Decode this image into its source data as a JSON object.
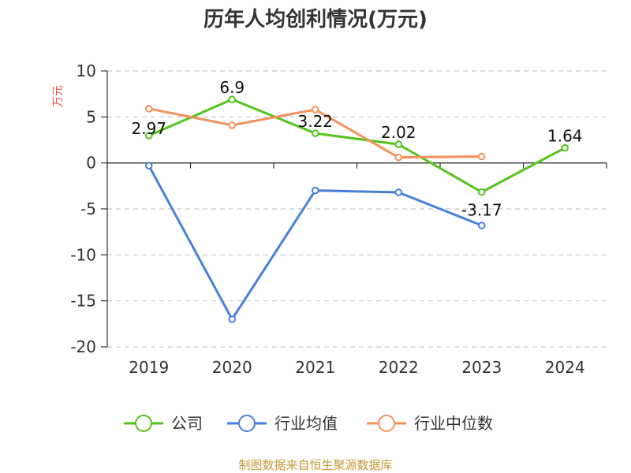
{
  "chart_data": {
    "type": "line",
    "title": "历年人均创利情况(万元)",
    "ylabel": "万元",
    "xlabel": "",
    "categories": [
      "2019",
      "2020",
      "2021",
      "2022",
      "2023",
      "2024"
    ],
    "ylim": [
      -20,
      10
    ],
    "yticks": [
      10,
      5,
      0,
      -5,
      -10,
      -15,
      -20
    ],
    "grid": true,
    "series": [
      {
        "name": "公司",
        "color": "#52c41a",
        "values": [
          2.97,
          6.9,
          3.22,
          2.02,
          -3.17,
          1.64
        ],
        "show_labels": true,
        "labels": [
          "2.97",
          "6.9",
          "3.22",
          "2.02",
          "-3.17",
          "1.64"
        ]
      },
      {
        "name": "行业均值",
        "color": "#4a7fdc",
        "values": [
          -0.3,
          -17.0,
          -3.0,
          -3.2,
          -6.8,
          null
        ],
        "show_labels": false
      },
      {
        "name": "行业中位数",
        "color": "#f4915a",
        "values": [
          5.9,
          4.1,
          5.8,
          0.6,
          0.7,
          null
        ],
        "show_labels": false
      }
    ],
    "legend_position": "bottom"
  },
  "source": {
    "text": "制图数据来自恒生聚源数据库",
    "color": "#c59a3a"
  },
  "ylabel_color": "#e8504f"
}
